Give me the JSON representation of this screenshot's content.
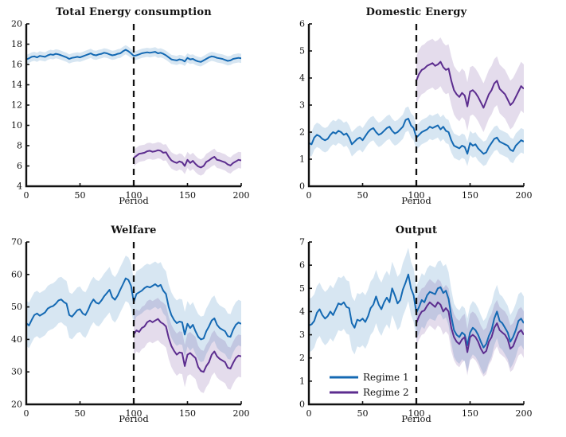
{
  "figure": {
    "background": "#ffffff",
    "axis_color": "#111111",
    "vline_color": "#111111",
    "band_opacity": 0.17
  },
  "colors": {
    "regime1": "#1469b3",
    "regime2": "#5c2d8f"
  },
  "chart_data": [
    {
      "type": "line",
      "title": "Total Energy consumption",
      "xlabel": "Period",
      "xlim": [
        0,
        200
      ],
      "ylim": [
        4,
        20
      ],
      "xticks": [
        0,
        50,
        100,
        150,
        200
      ],
      "yticks": [
        4,
        6,
        8,
        10,
        12,
        14,
        16,
        18,
        20
      ],
      "vline_x": 100,
      "series": [
        {
          "name": "Regime 1",
          "color": "#1469b3",
          "x0": 0,
          "dx": 2.5,
          "band": 0.45,
          "y": [
            16.5,
            16.6,
            16.75,
            16.8,
            16.7,
            16.85,
            16.8,
            16.75,
            16.9,
            17.0,
            16.95,
            17.05,
            17.0,
            16.9,
            16.8,
            16.7,
            16.55,
            16.65,
            16.7,
            16.75,
            16.7,
            16.8,
            16.9,
            17.0,
            17.1,
            16.95,
            16.9,
            17.0,
            17.05,
            17.15,
            17.1,
            17.0,
            16.9,
            16.95,
            17.05,
            17.1,
            17.3,
            17.45,
            17.3,
            17.1,
            16.85,
            16.9,
            17.0,
            17.1,
            17.15,
            17.2,
            17.15,
            17.2,
            17.25,
            17.1,
            17.15,
            17.05,
            16.9,
            16.7,
            16.5,
            16.45,
            16.4,
            16.5,
            16.45,
            16.3,
            16.65,
            16.5,
            16.55,
            16.4,
            16.3,
            16.25,
            16.4,
            16.55,
            16.7,
            16.8,
            16.75,
            16.65,
            16.6,
            16.55,
            16.45,
            16.35,
            16.4,
            16.55,
            16.6,
            16.65,
            16.6
          ]
        },
        {
          "name": "Regime 2",
          "color": "#5c2d8f",
          "x0": 100,
          "dx": 2.5,
          "band": 0.8,
          "y": [
            6.8,
            7.0,
            7.2,
            7.25,
            7.3,
            7.45,
            7.5,
            7.4,
            7.45,
            7.55,
            7.5,
            7.3,
            7.35,
            6.9,
            6.55,
            6.4,
            6.3,
            6.45,
            6.35,
            6.0,
            6.6,
            6.3,
            6.5,
            6.2,
            5.95,
            5.85,
            6.0,
            6.4,
            6.55,
            6.75,
            6.9,
            6.6,
            6.55,
            6.45,
            6.35,
            6.15,
            6.05,
            6.3,
            6.45,
            6.6,
            6.55
          ]
        }
      ],
      "legend": null
    },
    {
      "type": "line",
      "title": "Domestic Energy",
      "xlabel": "Period",
      "xlim": [
        0,
        200
      ],
      "ylim": [
        0,
        6
      ],
      "xticks": [
        0,
        50,
        100,
        150,
        200
      ],
      "yticks": [
        0,
        1,
        2,
        3,
        4,
        5,
        6
      ],
      "vline_x": 100,
      "series": [
        {
          "name": "Regime 1",
          "color": "#1469b3",
          "x0": 0,
          "dx": 2.5,
          "band": 0.45,
          "y": [
            1.6,
            1.55,
            1.8,
            1.9,
            1.85,
            1.75,
            1.7,
            1.75,
            1.9,
            2.0,
            1.95,
            2.05,
            2.0,
            1.9,
            1.95,
            1.8,
            1.55,
            1.65,
            1.75,
            1.8,
            1.7,
            1.85,
            2.0,
            2.1,
            2.15,
            2.0,
            1.9,
            1.95,
            2.05,
            2.15,
            2.2,
            2.05,
            1.95,
            2.0,
            2.1,
            2.2,
            2.45,
            2.5,
            2.25,
            2.15,
            1.8,
            1.9,
            2.0,
            2.05,
            2.1,
            2.2,
            2.15,
            2.2,
            2.25,
            2.1,
            2.2,
            2.05,
            2.0,
            1.7,
            1.5,
            1.45,
            1.4,
            1.5,
            1.45,
            1.2,
            1.6,
            1.5,
            1.55,
            1.4,
            1.3,
            1.2,
            1.25,
            1.45,
            1.6,
            1.75,
            1.8,
            1.65,
            1.6,
            1.55,
            1.5,
            1.35,
            1.3,
            1.5,
            1.6,
            1.7,
            1.65
          ]
        },
        {
          "name": "Regime 2",
          "color": "#5c2d8f",
          "x0": 100,
          "dx": 2.5,
          "band": 0.9,
          "y": [
            3.9,
            4.15,
            4.3,
            4.35,
            4.45,
            4.5,
            4.55,
            4.45,
            4.5,
            4.6,
            4.4,
            4.3,
            4.35,
            3.9,
            3.55,
            3.4,
            3.3,
            3.45,
            3.35,
            2.95,
            3.5,
            3.55,
            3.45,
            3.3,
            3.1,
            2.9,
            3.15,
            3.4,
            3.55,
            3.8,
            3.9,
            3.6,
            3.5,
            3.4,
            3.2,
            3.0,
            3.1,
            3.3,
            3.5,
            3.7,
            3.6
          ]
        }
      ],
      "legend": null
    },
    {
      "type": "line",
      "title": "Welfare",
      "xlabel": "Period",
      "xlim": [
        0,
        200
      ],
      "ylim": [
        20,
        70
      ],
      "xticks": [
        0,
        50,
        100,
        150,
        200
      ],
      "yticks": [
        20,
        30,
        40,
        50,
        60,
        70
      ],
      "vline_x": 100,
      "series": [
        {
          "name": "Regime 1",
          "color": "#1469b3",
          "x0": 0,
          "dx": 2.5,
          "band": 7,
          "y": [
            45,
            44.3,
            46,
            47.5,
            48,
            47.3,
            47.8,
            48.3,
            49.5,
            50,
            50.3,
            51,
            52,
            52.3,
            51.5,
            51,
            47.5,
            47,
            48,
            49,
            49.3,
            48,
            47.5,
            49,
            51,
            52.3,
            51.3,
            51,
            52,
            53.3,
            54.3,
            55.3,
            53,
            52.2,
            53.5,
            55.3,
            57,
            58.8,
            58.3,
            56.5,
            51.5,
            54,
            54.5,
            55,
            55.8,
            56.3,
            56,
            56.5,
            57,
            56.3,
            56.8,
            55,
            54,
            50,
            47.5,
            46,
            45,
            45.5,
            45.3,
            41.5,
            44.8,
            43.5,
            44.5,
            42.5,
            40.8,
            40,
            40.3,
            42.5,
            44,
            45.8,
            46.5,
            44.5,
            43.5,
            43,
            42.5,
            41,
            40.8,
            43,
            44.5,
            45.2,
            44.8
          ]
        },
        {
          "name": "Regime 2",
          "color": "#5c2d8f",
          "x0": 100,
          "dx": 2.5,
          "band": 6.5,
          "y": [
            41.5,
            42.8,
            42.3,
            43.5,
            44,
            45.3,
            45.8,
            45.3,
            45.8,
            46.3,
            45.3,
            44.8,
            44,
            40.5,
            38,
            36.5,
            35.3,
            36,
            35.8,
            31.8,
            35.3,
            35.8,
            35,
            34.3,
            31.5,
            30.3,
            30,
            31.8,
            33,
            35.3,
            36.3,
            34.8,
            34,
            33.5,
            33,
            31.3,
            31,
            32.8,
            34.3,
            35,
            34.8
          ]
        }
      ],
      "legend": null
    },
    {
      "type": "line",
      "title": "Output",
      "xlabel": "Period",
      "xlim": [
        0,
        200
      ],
      "ylim": [
        0,
        7
      ],
      "xticks": [
        0,
        50,
        100,
        150,
        200
      ],
      "yticks": [
        0,
        1,
        2,
        3,
        4,
        5,
        6,
        7
      ],
      "vline_x": 100,
      "series": [
        {
          "name": "Regime 1",
          "color": "#1469b3",
          "x0": 0,
          "dx": 2.5,
          "band": 1.15,
          "y": [
            3.4,
            3.45,
            3.6,
            3.95,
            4.1,
            3.85,
            3.7,
            3.8,
            4.0,
            3.85,
            4.1,
            4.35,
            4.3,
            4.4,
            4.2,
            4.15,
            3.5,
            3.3,
            3.65,
            3.6,
            3.7,
            3.55,
            3.8,
            4.15,
            4.3,
            4.65,
            4.3,
            4.1,
            4.4,
            4.6,
            4.4,
            5.0,
            4.7,
            4.35,
            4.5,
            4.95,
            5.25,
            5.6,
            5.0,
            4.7,
            3.95,
            4.2,
            4.5,
            4.4,
            4.7,
            4.85,
            4.8,
            4.75,
            5.0,
            5.05,
            4.8,
            4.9,
            4.55,
            3.8,
            3.2,
            3.0,
            2.9,
            3.1,
            3.0,
            2.55,
            3.1,
            3.3,
            3.2,
            3.0,
            2.7,
            2.45,
            2.6,
            2.95,
            3.2,
            3.7,
            4.0,
            3.6,
            3.5,
            3.3,
            3.1,
            2.7,
            2.9,
            3.2,
            3.6,
            3.7,
            3.5
          ]
        },
        {
          "name": "Regime 2",
          "color": "#5c2d8f",
          "x0": 100,
          "dx": 2.5,
          "band": 1.0,
          "y": [
            3.5,
            3.8,
            4.0,
            4.05,
            4.25,
            4.4,
            4.3,
            4.2,
            4.4,
            4.3,
            4.0,
            4.15,
            4.0,
            3.3,
            2.9,
            2.7,
            2.6,
            2.8,
            2.9,
            2.25,
            2.9,
            3.0,
            2.9,
            2.7,
            2.4,
            2.2,
            2.3,
            2.7,
            2.9,
            3.3,
            3.5,
            3.2,
            3.1,
            3.0,
            2.8,
            2.4,
            2.5,
            2.8,
            3.1,
            3.2,
            3.0
          ]
        }
      ],
      "legend": {
        "items": [
          {
            "label": "Regime 1",
            "color": "#1469b3"
          },
          {
            "label": "Regime 2",
            "color": "#5c2d8f"
          }
        ],
        "position": "southwest"
      }
    }
  ]
}
